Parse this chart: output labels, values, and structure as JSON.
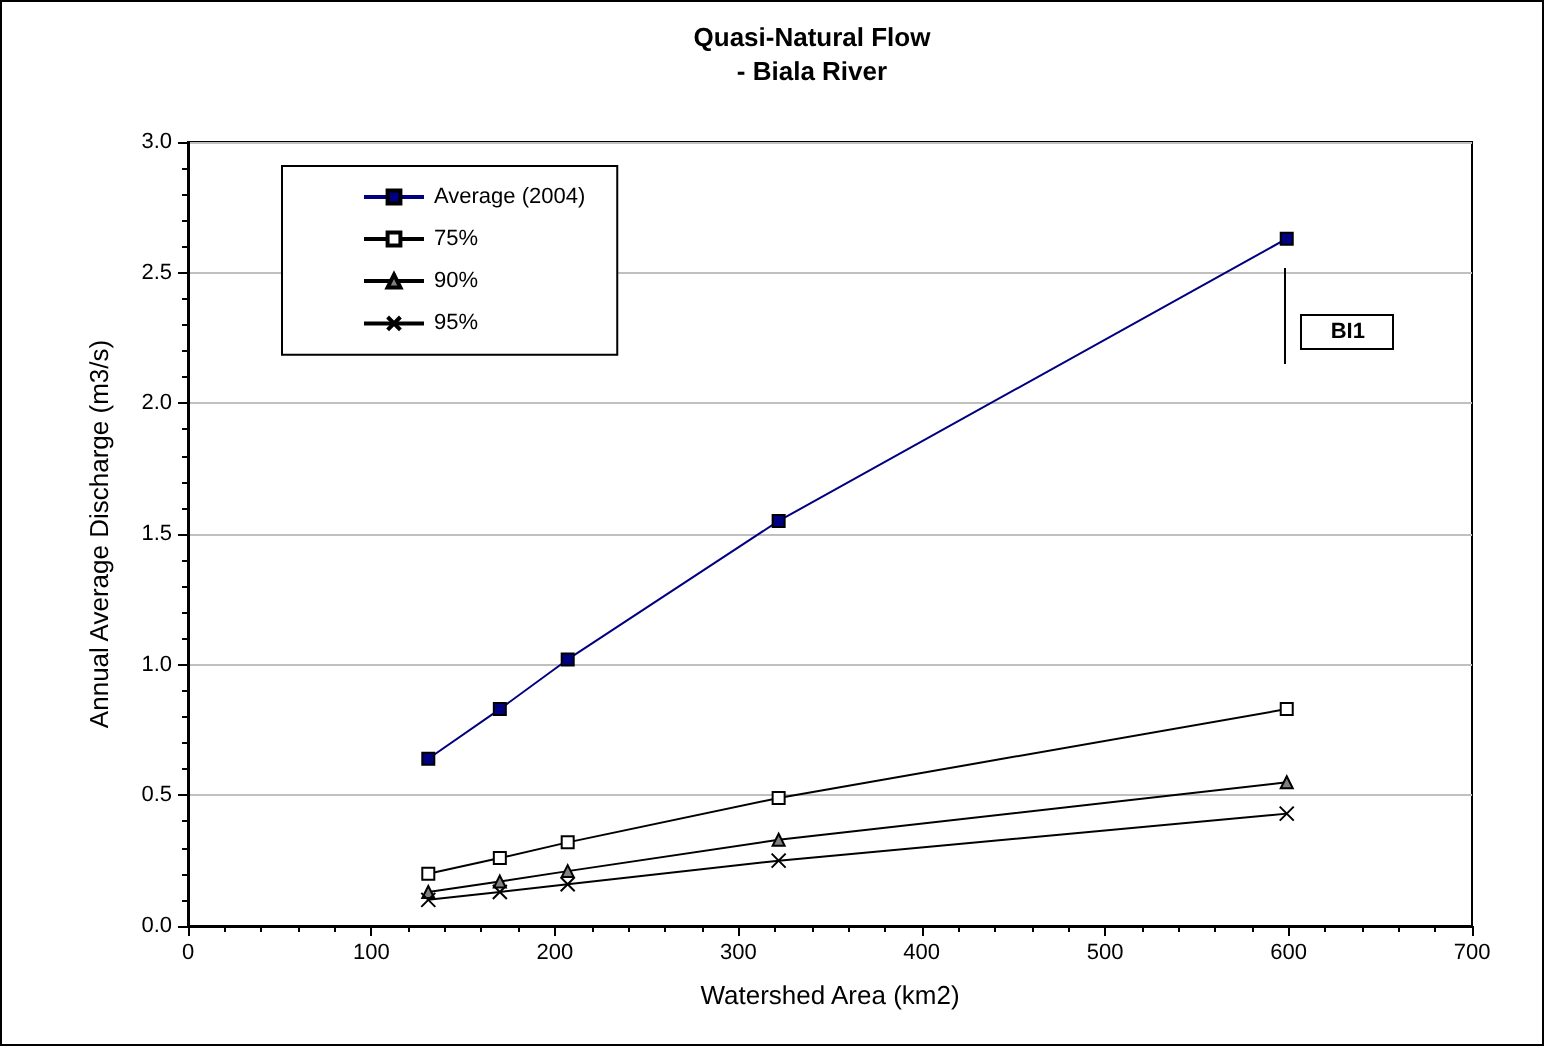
{
  "chart_data": {
    "type": "line",
    "title": "Quasi-Natural Flow\n- Biala River",
    "xlabel": "Watershed Area (km2)",
    "ylabel": "Annual Average Discharge (m3/s)",
    "x": [
      131,
      170,
      207,
      322,
      599
    ],
    "series": [
      {
        "name": "Average (2004)",
        "color": "#000080",
        "marker": "square",
        "values": [
          0.64,
          0.83,
          1.02,
          1.55,
          2.63
        ]
      },
      {
        "name": "75%",
        "color": "#000000",
        "marker": "square",
        "values": [
          0.2,
          0.26,
          0.32,
          0.49,
          0.83
        ]
      },
      {
        "name": "90%",
        "color": "#000000",
        "marker": "triangle",
        "values": [
          0.13,
          0.17,
          0.21,
          0.33,
          0.55
        ]
      },
      {
        "name": "95%",
        "color": "#000000",
        "marker": "cross",
        "values": [
          0.1,
          0.13,
          0.16,
          0.25,
          0.43
        ]
      }
    ],
    "xlim": [
      0,
      700
    ],
    "xticks": [
      0,
      100,
      200,
      300,
      400,
      500,
      600,
      700
    ],
    "ylim": [
      0,
      3
    ],
    "yticks": [
      {
        "value": 0,
        "label": "0.0"
      },
      {
        "value": 0.5,
        "label": "0.5"
      },
      {
        "value": 1,
        "label": "1.0"
      },
      {
        "value": 1.5,
        "label": "1.5"
      },
      {
        "value": 2,
        "label": "2.0"
      },
      {
        "value": 2.5,
        "label": "2.5"
      },
      {
        "value": 3,
        "label": "3.0"
      }
    ],
    "grid": "y",
    "legend": "top left",
    "line_style": "solid",
    "annotations": [
      "BI1"
    ]
  }
}
